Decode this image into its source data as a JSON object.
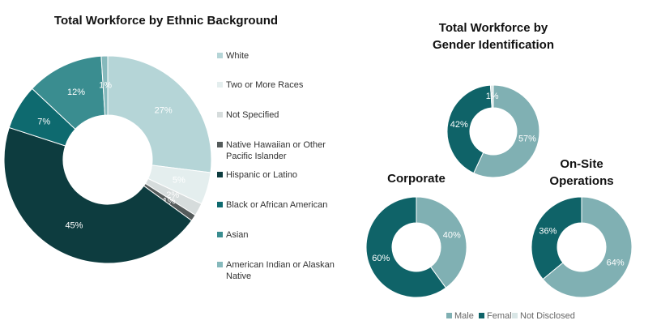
{
  "chart_data": [
    {
      "type": "donut",
      "title": "Total Workforce by Ethnic Background",
      "categories": [
        "White",
        "Two or More Races",
        "Not Specified",
        "Native Hawaiian or Other Pacific Islander",
        "Hispanic or Latino",
        "Black or African American",
        "Asian",
        "American Indian or Alaskan Native"
      ],
      "values": [
        27,
        5,
        2,
        1,
        45,
        7,
        12,
        1
      ],
      "value_labels": [
        "27%",
        "5%",
        "2%",
        "1%",
        "45%",
        "7%",
        "12%",
        "1%"
      ],
      "colors": [
        "#b5d5d7",
        "#e4eeee",
        "#d6dcdc",
        "#555b5b",
        "#0d3c3f",
        "#0e6a6f",
        "#3a8d90",
        "#86b9bc"
      ],
      "legend": "right"
    },
    {
      "type": "donut",
      "title": "Total Workforce by Gender Identification",
      "categories": [
        "Male",
        "Female",
        "Not Disclosed"
      ],
      "values": [
        57,
        42,
        1
      ],
      "value_labels": [
        "57%",
        "42%",
        "1%"
      ],
      "colors": [
        "#80b0b3",
        "#0f6368",
        "#d9e6e6"
      ],
      "legend": "bottom"
    },
    {
      "type": "donut",
      "title": "Corporate",
      "values": [
        40,
        60
      ],
      "value_labels": [
        "40%",
        "60%"
      ],
      "colors": [
        "#80b0b3",
        "#0f6368"
      ]
    },
    {
      "type": "donut",
      "title": "On-Site Operations",
      "values": [
        64,
        36
      ],
      "value_labels": [
        "64%",
        "36%"
      ],
      "colors": [
        "#80b0b3",
        "#0f6368"
      ]
    }
  ]
}
